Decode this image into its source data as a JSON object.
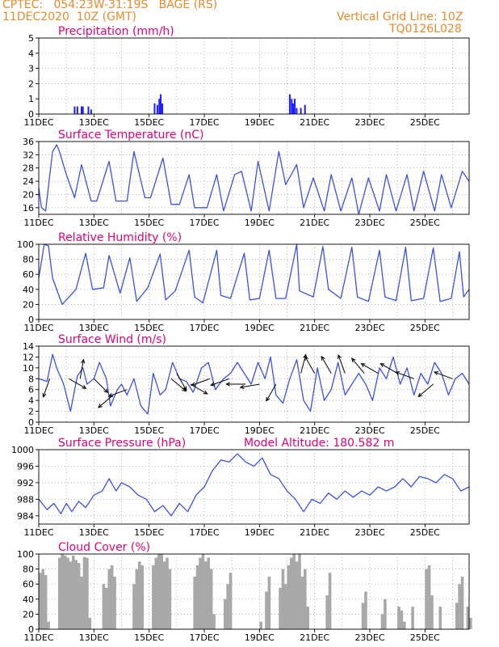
{
  "header": {
    "station": "CPTEC:   054:23W-31:19S   BAGE (RS)",
    "init": "11DEC2020  10Z (GMT)",
    "grid": "Vertical Grid Line: 10Z",
    "code": "TQ0126L028"
  },
  "colors": {
    "header": "#e8892a",
    "title": "#e0007a",
    "line": "#3a50e8",
    "bar": "#1c1cff",
    "cloud": "#a8a8a8",
    "arrow": "#000000"
  },
  "chart_data": [
    {
      "type": "bar",
      "title": "Precipitation (mm/h)",
      "ylim": [
        0,
        5
      ],
      "yticks": [
        0,
        1,
        2,
        3,
        4,
        5
      ],
      "xticks": [
        "11DEC",
        "13DEC",
        "15DEC",
        "17DEC",
        "19DEC",
        "21DEC",
        "23DEC",
        "25DEC"
      ],
      "x_start_label": "11DEC",
      "bars": [
        {
          "day": 1.3,
          "value": 0.5
        },
        {
          "day": 1.4,
          "value": 0.5
        },
        {
          "day": 1.55,
          "value": 0.5
        },
        {
          "day": 1.6,
          "value": 0.5
        },
        {
          "day": 1.8,
          "value": 0.5
        },
        {
          "day": 1.9,
          "value": 0.3
        },
        {
          "day": 4.2,
          "value": 0.7
        },
        {
          "day": 4.3,
          "value": 0.6
        },
        {
          "day": 4.37,
          "value": 1.0
        },
        {
          "day": 4.42,
          "value": 1.3
        },
        {
          "day": 4.48,
          "value": 0.7
        },
        {
          "day": 9.1,
          "value": 1.3
        },
        {
          "day": 9.17,
          "value": 1.0
        },
        {
          "day": 9.22,
          "value": 0.7
        },
        {
          "day": 9.28,
          "value": 1.0
        },
        {
          "day": 9.35,
          "value": 0.4
        },
        {
          "day": 9.5,
          "value": 0.4
        },
        {
          "day": 9.65,
          "value": 0.6
        }
      ]
    },
    {
      "type": "line",
      "title": "Surface Temperature (nC)",
      "ylim": [
        14,
        36
      ],
      "yticks": [
        16,
        20,
        24,
        28,
        32,
        36
      ],
      "xticks": [
        "11DEC",
        "13DEC",
        "15DEC",
        "17DEC",
        "19DEC",
        "21DEC",
        "23DEC",
        "25DEC"
      ],
      "series": [
        {
          "x": [
            0,
            0.1,
            0.25,
            0.5,
            0.65,
            0.75,
            1.0,
            1.3,
            1.55,
            1.9,
            2.1,
            2.55,
            2.8,
            3.2,
            3.45,
            3.85,
            4.05,
            4.5,
            4.8,
            5.1,
            5.45,
            5.65,
            6.1,
            6.45,
            6.7,
            7.1,
            7.35,
            7.7,
            7.95,
            8.35,
            8.7,
            8.95,
            9.35,
            9.6,
            9.95,
            10.35,
            10.6,
            10.95,
            11.35,
            11.6,
            11.95,
            12.35,
            12.6,
            12.95,
            13.35,
            13.6,
            13.95,
            14.35,
            14.6,
            14.95,
            15.35,
            15.6
          ],
          "values": [
            22,
            16,
            15,
            33,
            35,
            33,
            26,
            19,
            29,
            18,
            18,
            30,
            18,
            18,
            33,
            19,
            19,
            31,
            17,
            17,
            26,
            16,
            16,
            26,
            15,
            26,
            27,
            15,
            30,
            15,
            33,
            23,
            29,
            16,
            25,
            15,
            26,
            15,
            25,
            14,
            25,
            15,
            26,
            15,
            26,
            15,
            27,
            15,
            26,
            16,
            27,
            24
          ]
        }
      ]
    },
    {
      "type": "line",
      "title": "Relative Humidity (%)",
      "ylim": [
        0,
        100
      ],
      "yticks": [
        0,
        20,
        40,
        60,
        80,
        100
      ],
      "xticks": [
        "11DEC",
        "13DEC",
        "15DEC",
        "17DEC",
        "19DEC",
        "21DEC",
        "23DEC",
        "25DEC"
      ],
      "series": [
        {
          "x": [
            0,
            0.2,
            0.35,
            0.5,
            0.85,
            1.35,
            1.7,
            1.95,
            2.35,
            2.55,
            2.95,
            3.3,
            3.55,
            3.95,
            4.4,
            4.6,
            4.95,
            5.45,
            5.65,
            5.95,
            6.45,
            6.6,
            6.95,
            7.45,
            7.65,
            8.0,
            8.35,
            8.6,
            8.95,
            9.35,
            9.45,
            9.95,
            10.3,
            10.5,
            10.95,
            11.35,
            11.55,
            11.95,
            12.35,
            12.55,
            12.95,
            13.3,
            13.5,
            13.95,
            14.3,
            14.55,
            14.95,
            15.25,
            15.4,
            15.6
          ],
          "values": [
            55,
            100,
            98,
            55,
            20,
            40,
            88,
            40,
            42,
            85,
            35,
            82,
            24,
            42,
            87,
            26,
            38,
            92,
            30,
            22,
            92,
            32,
            28,
            88,
            26,
            28,
            92,
            28,
            28,
            100,
            38,
            30,
            97,
            40,
            28,
            96,
            30,
            24,
            92,
            30,
            25,
            96,
            25,
            28,
            95,
            24,
            28,
            90,
            30,
            40
          ]
        }
      ]
    },
    {
      "type": "line",
      "title": "Surface Wind (m/s)",
      "ylim": [
        0,
        14
      ],
      "yticks": [
        0,
        2,
        4,
        6,
        8,
        10,
        12,
        14
      ],
      "xticks": [
        "11DEC",
        "13DEC",
        "15DEC",
        "17DEC",
        "19DEC",
        "21DEC",
        "23DEC",
        "25DEC"
      ],
      "series": [
        {
          "x": [
            0,
            0.3,
            0.5,
            0.65,
            0.9,
            1.15,
            1.4,
            1.6,
            1.75,
            2.0,
            2.2,
            2.45,
            2.6,
            2.85,
            3.0,
            3.2,
            3.45,
            3.7,
            3.95,
            4.15,
            4.4,
            4.6,
            4.85,
            5.1,
            5.35,
            5.6,
            5.9,
            6.15,
            6.4,
            6.7,
            6.95,
            7.2,
            7.45,
            7.7,
            7.95,
            8.2,
            8.4,
            8.6,
            8.85,
            9.1,
            9.35,
            9.6,
            9.85,
            10.1,
            10.35,
            10.6,
            10.85,
            11.1,
            11.35,
            11.6,
            11.85,
            12.1,
            12.35,
            12.6,
            12.85,
            13.1,
            13.35,
            13.6,
            13.85,
            14.1,
            14.35,
            14.6,
            14.85,
            15.1,
            15.35,
            15.6
          ],
          "values": [
            8,
            7.5,
            12.5,
            10,
            7,
            2,
            8.5,
            10,
            7,
            8,
            11,
            8,
            3,
            6,
            7,
            5,
            8,
            3,
            1.5,
            9,
            5,
            6,
            11,
            8,
            7.5,
            5.5,
            10,
            11,
            6,
            8,
            9,
            11,
            9,
            7,
            11,
            8,
            12,
            5,
            3.5,
            8,
            11.5,
            4,
            2,
            10,
            4,
            6,
            11,
            5,
            7,
            9,
            7,
            4,
            10,
            8,
            12,
            7,
            10,
            5,
            9,
            7,
            11,
            9,
            5,
            8,
            9,
            7
          ]
        }
      ],
      "arrows": [
        {
          "day": 0.4,
          "value": 8,
          "angle": 250
        },
        {
          "day": 1.1,
          "value": 8,
          "angle": 330
        },
        {
          "day": 1.5,
          "value": 8,
          "angle": 80
        },
        {
          "day": 2.0,
          "value": 8,
          "angle": 315
        },
        {
          "day": 2.7,
          "value": 5,
          "angle": 220
        },
        {
          "day": 3.2,
          "value": 6,
          "angle": 200
        },
        {
          "day": 4.8,
          "value": 8,
          "angle": 320
        },
        {
          "day": 5.0,
          "value": 9,
          "angle": 300
        },
        {
          "day": 5.5,
          "value": 7,
          "angle": 330
        },
        {
          "day": 6.2,
          "value": 8,
          "angle": 200
        },
        {
          "day": 6.9,
          "value": 8,
          "angle": 200
        },
        {
          "day": 7.5,
          "value": 7,
          "angle": 180
        },
        {
          "day": 8.0,
          "value": 7,
          "angle": 190
        },
        {
          "day": 8.6,
          "value": 7,
          "angle": 240
        },
        {
          "day": 9.5,
          "value": 9,
          "angle": 75
        },
        {
          "day": 10.0,
          "value": 9,
          "angle": 120
        },
        {
          "day": 10.6,
          "value": 9,
          "angle": 120
        },
        {
          "day": 11.1,
          "value": 9,
          "angle": 110
        },
        {
          "day": 11.8,
          "value": 9,
          "angle": 130
        },
        {
          "day": 12.3,
          "value": 9,
          "angle": 150
        },
        {
          "day": 13.0,
          "value": 9,
          "angle": 150
        },
        {
          "day": 13.6,
          "value": 8,
          "angle": 160
        },
        {
          "day": 14.3,
          "value": 7,
          "angle": 220
        },
        {
          "day": 15.0,
          "value": 8,
          "angle": 160
        }
      ]
    },
    {
      "type": "line",
      "title": "Surface Pressure (hPa)",
      "annotation": "Model Altitude: 180.582  m",
      "ylim": [
        982,
        1000
      ],
      "yticks": [
        984,
        988,
        992,
        996,
        1000
      ],
      "xticks": [
        "11DEC",
        "13DEC",
        "15DEC",
        "17DEC",
        "19DEC",
        "21DEC",
        "23DEC",
        "25DEC"
      ],
      "series": [
        {
          "x": [
            0,
            0.3,
            0.55,
            0.8,
            1.0,
            1.2,
            1.45,
            1.7,
            2.0,
            2.3,
            2.55,
            2.8,
            3.0,
            3.3,
            3.6,
            3.9,
            4.2,
            4.5,
            4.8,
            5.1,
            5.4,
            5.7,
            6.0,
            6.3,
            6.6,
            6.9,
            7.2,
            7.5,
            7.8,
            8.1,
            8.4,
            8.7,
            9.0,
            9.3,
            9.6,
            9.9,
            10.2,
            10.5,
            10.8,
            11.1,
            11.4,
            11.7,
            12.0,
            12.3,
            12.6,
            12.9,
            13.2,
            13.5,
            13.8,
            14.1,
            14.4,
            14.7,
            15.0,
            15.3,
            15.6
          ],
          "values": [
            988,
            985.5,
            987,
            984.5,
            987,
            985,
            987.5,
            986,
            989,
            990,
            993,
            990,
            992,
            991,
            989,
            988,
            985,
            986.5,
            984,
            987,
            985,
            989,
            991,
            995,
            997.5,
            997,
            999,
            997,
            996,
            998,
            994,
            993,
            990,
            988,
            985,
            988,
            987,
            989.5,
            988,
            990,
            988.5,
            990,
            989,
            991,
            990,
            991,
            993,
            991,
            993.5,
            993,
            992,
            994,
            993,
            990,
            991
          ]
        }
      ]
    },
    {
      "type": "bar",
      "title": "Cloud Cover (%)",
      "ylim": [
        0,
        100
      ],
      "yticks": [
        0,
        20,
        40,
        60,
        80,
        100
      ],
      "xticks": [
        "11DEC",
        "13DEC",
        "15DEC",
        "17DEC",
        "19DEC",
        "21DEC",
        "23DEC",
        "25DEC"
      ],
      "series": [
        {
          "x": [
            0.0,
            0.1,
            0.2,
            0.3,
            0.4,
            0.5,
            0.6,
            0.7,
            0.8,
            0.9,
            1.0,
            1.1,
            1.2,
            1.3,
            1.4,
            1.5,
            1.6,
            1.7,
            1.8,
            1.9,
            2.0,
            2.1,
            2.2,
            2.3,
            2.4,
            2.5,
            2.6,
            2.7,
            2.8,
            2.9,
            3.0,
            3.1,
            3.2,
            3.3,
            3.4,
            3.5,
            3.6,
            3.7,
            3.8,
            3.9,
            4.0,
            4.1,
            4.2,
            4.3,
            4.4,
            4.5,
            4.6,
            4.7,
            4.8,
            4.9,
            5.0,
            5.1,
            5.2,
            5.3,
            5.4,
            5.5,
            5.6,
            5.7,
            5.8,
            5.9,
            6.0,
            6.1,
            6.2,
            6.3,
            6.4,
            6.5,
            6.6,
            6.7,
            6.8,
            6.9,
            7.0,
            7.1,
            7.2,
            7.3,
            7.4,
            7.5,
            7.6,
            7.7,
            7.8,
            7.9,
            8.0,
            8.1,
            8.2,
            8.3,
            8.4,
            8.5,
            8.6,
            8.7,
            8.8,
            8.9,
            9.0,
            9.1,
            9.2,
            9.3,
            9.4,
            9.5,
            9.6,
            9.7,
            9.8,
            9.9,
            10.0,
            10.1,
            10.2,
            10.3,
            10.4,
            10.5,
            10.6,
            10.7,
            10.8,
            10.9,
            11.0,
            11.1,
            11.2,
            11.3,
            11.4,
            11.5,
            11.6,
            11.7,
            11.8,
            11.9,
            12.0,
            12.1,
            12.2,
            12.3,
            12.4,
            12.5,
            12.6,
            12.7,
            12.8,
            12.9,
            13.0,
            13.1,
            13.2,
            13.3,
            13.4,
            13.5,
            13.6,
            13.7,
            13.8,
            13.9,
            14.0,
            14.1,
            14.2,
            14.3,
            14.4,
            14.5,
            14.6,
            14.7,
            14.8,
            14.9,
            15.0,
            15.1,
            15.2,
            15.3,
            15.4,
            15.5,
            15.6
          ],
          "values": [
            75,
            80,
            72,
            10,
            0,
            0,
            0,
            95,
            100,
            98,
            95,
            90,
            98,
            92,
            88,
            70,
            96,
            95,
            15,
            0,
            0,
            0,
            0,
            60,
            55,
            80,
            85,
            70,
            0,
            0,
            0,
            0,
            0,
            0,
            60,
            80,
            90,
            85,
            0,
            0,
            0,
            85,
            95,
            100,
            100,
            90,
            95,
            80,
            0,
            0,
            0,
            0,
            0,
            0,
            0,
            0,
            70,
            85,
            95,
            100,
            90,
            95,
            80,
            20,
            0,
            0,
            0,
            40,
            60,
            75,
            0,
            0,
            0,
            0,
            0,
            0,
            0,
            0,
            0,
            0,
            10,
            0,
            50,
            70,
            0,
            0,
            0,
            55,
            80,
            60,
            85,
            95,
            100,
            90,
            100,
            70,
            80,
            30,
            0,
            0,
            0,
            0,
            0,
            0,
            45,
            75,
            0,
            0,
            0,
            0,
            0,
            0,
            0,
            0,
            0,
            0,
            0,
            35,
            50,
            0,
            0,
            0,
            0,
            0,
            20,
            40,
            0,
            0,
            0,
            0,
            30,
            25,
            10,
            0,
            0,
            30,
            0,
            0,
            0,
            0,
            80,
            85,
            45,
            0,
            0,
            30,
            0,
            0,
            0,
            0,
            0,
            35,
            60,
            70,
            0,
            30,
            15
          ]
        }
      ]
    }
  ]
}
